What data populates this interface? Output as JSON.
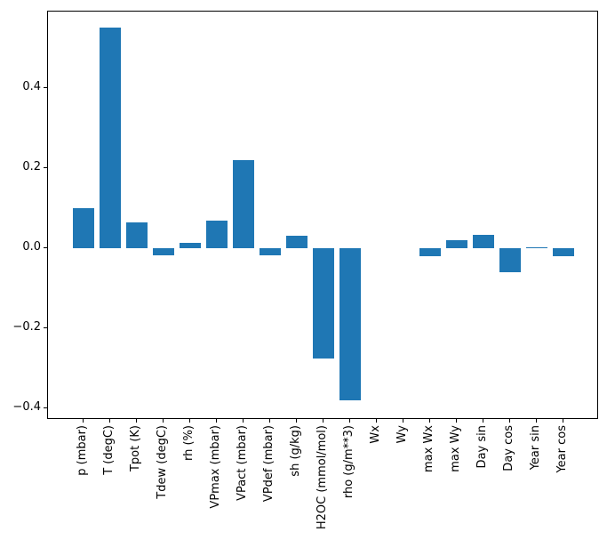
{
  "chart_data": {
    "type": "bar",
    "title": "",
    "xlabel": "",
    "ylabel": "",
    "categories": [
      "p (mbar)",
      "T (degC)",
      "Tpot (K)",
      "Tdew (degC)",
      "rh (%)",
      "VPmax (mbar)",
      "VPact (mbar)",
      "VPdef (mbar)",
      "sh (g/kg)",
      "H2OC (mmol/mol)",
      "rho (g/m**3)",
      "Wx",
      "Wy",
      "max Wx",
      "max Wy",
      "Day sin",
      "Day cos",
      "Year sin",
      "Year cos"
    ],
    "values": [
      0.1,
      0.55,
      0.065,
      -0.017,
      0.013,
      0.068,
      0.22,
      -0.017,
      0.032,
      -0.275,
      -0.38,
      0.0,
      0.0,
      -0.019,
      0.019,
      0.034,
      -0.06,
      0.003,
      -0.02
    ],
    "ylim": [
      -0.43,
      0.59
    ],
    "yticks": [
      -0.4,
      -0.2,
      0.0,
      0.2,
      0.4
    ],
    "ytick_labels": [
      "−0.4",
      "−0.2",
      "0.0",
      "0.2",
      "0.4"
    ],
    "bar_color": "#1f77b4",
    "axis_color": "#000000",
    "background_color": "#ffffff",
    "grid": false,
    "legend_position": "none",
    "x_label_rotation_deg": 90
  }
}
